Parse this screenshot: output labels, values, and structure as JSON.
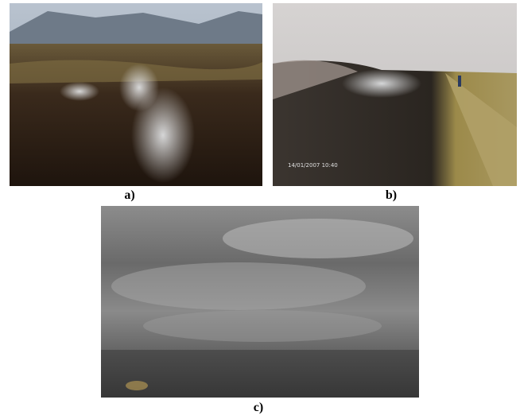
{
  "figure": {
    "panels": [
      {
        "label": "a)"
      },
      {
        "label": "b)",
        "timestamp": "14/01/2007 10:40"
      },
      {
        "label": "c)"
      }
    ]
  }
}
